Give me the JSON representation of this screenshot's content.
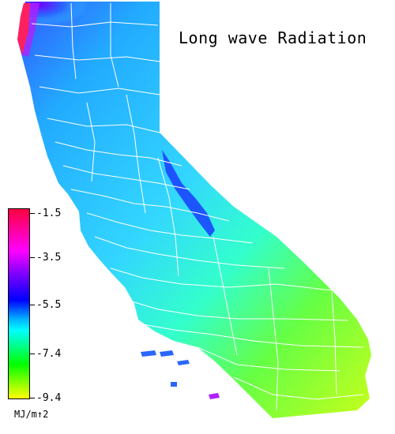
{
  "title": "Long wave Radiation",
  "legend": {
    "labels": [
      "-1.5",
      "-3.5",
      "-5.5",
      "-7.4",
      "-9.4"
    ],
    "unit": "MJ/m↑2",
    "colors": {
      "top": "#ff0040",
      "magenta": "#ff00ff",
      "purple": "#8000ff",
      "blue": "#0000ff",
      "light_blue": "#00b0ff",
      "cyan": "#00ffff",
      "green": "#00ff00",
      "yellow": "#ffff00"
    }
  },
  "map": {
    "region": "California",
    "base_color": "#33d6ff",
    "east_color": "#7dff33",
    "south_east_color": "#c8ff1a",
    "boundary_color": "#ffffff"
  }
}
